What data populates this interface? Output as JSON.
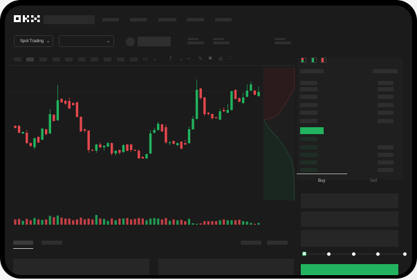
{
  "header": {
    "logo": "OKX",
    "nav_items": 5
  },
  "toolbar": {
    "market_selector": "Spot Trading",
    "pair_selector": ""
  },
  "trade_panel": {
    "tabs": [
      {
        "label": "Buy",
        "active": true
      },
      {
        "label": "Sell",
        "active": false
      }
    ],
    "slider_percent": 0,
    "submit_color": "#22b35e"
  },
  "colors": {
    "up": "#22b35e",
    "down": "#e5484d",
    "background": "#1b1b1b"
  },
  "icons": [
    "chevron-down-icon",
    "indicator-icon",
    "draw-icon",
    "camera-icon",
    "settings-icon",
    "fullscreen-icon",
    "orderbook-both-icon",
    "orderbook-buy-icon",
    "orderbook-sell-icon"
  ],
  "candles": [
    [
      58,
      55,
      59,
      54
    ],
    [
      58,
      48,
      59,
      47
    ],
    [
      47,
      49,
      50,
      46
    ],
    [
      48,
      33,
      52,
      32
    ],
    [
      33,
      29,
      34,
      27
    ],
    [
      27,
      40,
      41,
      24
    ],
    [
      42,
      34,
      43,
      33
    ],
    [
      38,
      54,
      55,
      37
    ],
    [
      53,
      46,
      54,
      44
    ],
    [
      47,
      75,
      82,
      46
    ],
    [
      74,
      65,
      75,
      64
    ],
    [
      66,
      95,
      117,
      65
    ],
    [
      97,
      92,
      98,
      91
    ],
    [
      94,
      90,
      96,
      88
    ],
    [
      94,
      83,
      99,
      82
    ],
    [
      91,
      88,
      92,
      87
    ],
    [
      92,
      71,
      93,
      70
    ],
    [
      71,
      50,
      72,
      49
    ],
    [
      53,
      51,
      54,
      48
    ],
    [
      51,
      23,
      52,
      19
    ],
    [
      23,
      22,
      25,
      21
    ],
    [
      22,
      31,
      32,
      19
    ],
    [
      31,
      27,
      34,
      25
    ],
    [
      27,
      29,
      30,
      22
    ],
    [
      28,
      33,
      35,
      27
    ],
    [
      33,
      18,
      34,
      15
    ],
    [
      18,
      22,
      23,
      15
    ],
    [
      23,
      19,
      24,
      16
    ],
    [
      20,
      30,
      32,
      19
    ],
    [
      31,
      22,
      32,
      21
    ],
    [
      31,
      23,
      32,
      20
    ],
    [
      23,
      22,
      24,
      21
    ],
    [
      22,
      11,
      24,
      10
    ],
    [
      13,
      11,
      14,
      10
    ],
    [
      11,
      17,
      18,
      10
    ],
    [
      18,
      47,
      52,
      17
    ],
    [
      48,
      52,
      55,
      47
    ],
    [
      52,
      61,
      64,
      51
    ],
    [
      60,
      50,
      61,
      49
    ],
    [
      56,
      34,
      60,
      32
    ],
    [
      33,
      34,
      36,
      30
    ],
    [
      36,
      32,
      37,
      31
    ],
    [
      30,
      33,
      34,
      29
    ],
    [
      35,
      25,
      36,
      24
    ],
    [
      33,
      31,
      38,
      30
    ],
    [
      33,
      53,
      57,
      32
    ],
    [
      53,
      68,
      72,
      52
    ],
    [
      68,
      110,
      125,
      67
    ],
    [
      112,
      98,
      113,
      96
    ],
    [
      99,
      75,
      100,
      72
    ],
    [
      77,
      75,
      78,
      73
    ],
    [
      75,
      69,
      76,
      67
    ],
    [
      70,
      69,
      72,
      68
    ],
    [
      67,
      79,
      83,
      66
    ],
    [
      81,
      79,
      85,
      78
    ],
    [
      77,
      81,
      90,
      76
    ],
    [
      81,
      108,
      109,
      80
    ],
    [
      110,
      97,
      111,
      96
    ],
    [
      98,
      93,
      99,
      92
    ],
    [
      91,
      99,
      106,
      90
    ],
    [
      100,
      109,
      118,
      99
    ],
    [
      109,
      118,
      122,
      108
    ],
    [
      109,
      103,
      110,
      102
    ],
    [
      101,
      107,
      115,
      100
    ]
  ],
  "volumes": [
    30,
    33,
    22,
    33,
    25,
    38,
    30,
    27,
    30,
    50,
    43,
    52,
    40,
    35,
    35,
    25,
    30,
    40,
    30,
    35,
    30,
    55,
    35,
    33,
    22,
    35,
    25,
    35,
    35,
    38,
    30,
    33,
    38,
    35,
    25,
    35,
    38,
    35,
    30,
    38,
    22,
    30,
    25,
    28,
    20,
    33,
    8,
    5,
    8,
    20,
    20,
    20,
    20,
    25,
    30,
    25,
    25,
    25,
    28,
    20,
    18,
    10,
    5,
    10
  ]
}
